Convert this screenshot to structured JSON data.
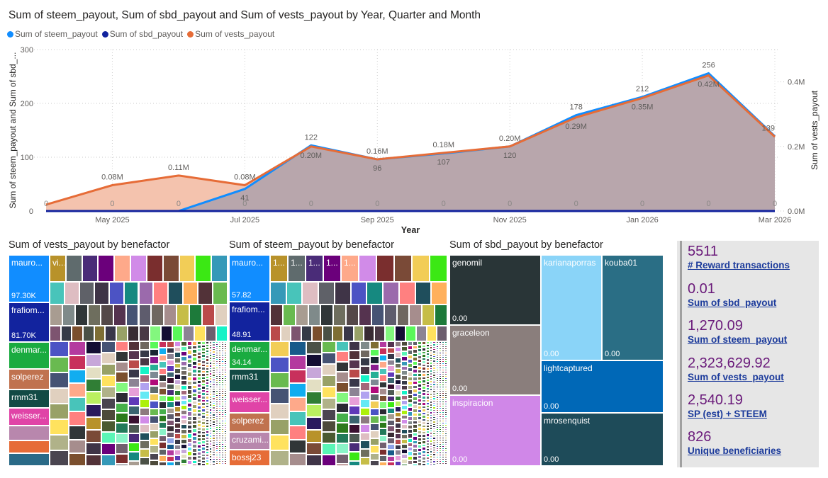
{
  "chart_data": {
    "type": "line",
    "title": "Sum of steem_payout, Sum of sbd_payout and Sum of vests_payout by Year, Quarter and Month",
    "xlabel": "Year",
    "ylabel_left": "Sum of steem_payout and Sum of sbd_...",
    "ylabel_right": "Sum of vests_payout",
    "categories": [
      "Apr 2025",
      "May 2025",
      "Jun 2025",
      "Jul 2025",
      "Aug 2025",
      "Sep 2025",
      "Oct 2025",
      "Nov 2025",
      "Dec 2025",
      "Jan 2026",
      "Feb 2026",
      "Mar 2026"
    ],
    "xticks": [
      "May 2025",
      "Jul 2025",
      "Sep 2025",
      "Nov 2025",
      "Jan 2026",
      "Mar 2026"
    ],
    "ylim_left": [
      0,
      300
    ],
    "yticks_left": [
      {
        "v": 0,
        "label": "0"
      },
      {
        "v": 100,
        "label": "100"
      },
      {
        "v": 200,
        "label": "200"
      },
      {
        "v": 300,
        "label": "300"
      }
    ],
    "ylim_right": [
      0,
      0.5
    ],
    "yticks_right": [
      {
        "v": 0,
        "label": "0.0M"
      },
      {
        "v": 0.2,
        "label": "0.2M"
      },
      {
        "v": 0.4,
        "label": "0.4M"
      }
    ],
    "grid": true,
    "legend_position": "top-left",
    "series": [
      {
        "name": "Sum of steem_payout",
        "axis": "left",
        "color": "#118DFF",
        "values": [
          null,
          null,
          0,
          41,
          122,
          96,
          107,
          120,
          178,
          212,
          256,
          139
        ],
        "labels": [
          null,
          null,
          null,
          "41",
          "122",
          "96",
          "107",
          "120",
          "178",
          "212",
          "256",
          "139"
        ]
      },
      {
        "name": "Sum of sbd_payout",
        "axis": "left",
        "color": "#12239E",
        "values": [
          0,
          0,
          0,
          0,
          0,
          0,
          0,
          0,
          0,
          0,
          0,
          0
        ],
        "labels": [
          "0",
          "0",
          "0",
          "0",
          "0",
          "0",
          "0",
          "0",
          "0",
          "0",
          "0",
          "0"
        ]
      },
      {
        "name": "Sum of vests_payout",
        "axis": "right",
        "unit": "M",
        "color": "#E66C37",
        "values": [
          0.02,
          0.08,
          0.11,
          0.08,
          0.2,
          0.16,
          0.18,
          0.2,
          0.29,
          0.35,
          0.42,
          0.23
        ],
        "labels": [
          null,
          "0.08M",
          "0.11M",
          "0.08M",
          "0.20M",
          "0.16M",
          "0.18M",
          "0.20M",
          "0.29M",
          "0.35M",
          "0.42M",
          null
        ]
      }
    ]
  },
  "treemaps": [
    {
      "title": "Sum of vests_payout by benefactor",
      "named": [
        {
          "label": "mauro...",
          "value": "97.30K",
          "color": "#118DFF",
          "weight": 97.3
        },
        {
          "label": "frafiom...",
          "value": "81.70K",
          "color": "#12239E",
          "weight": 81.7
        },
        {
          "label": "denmar...",
          "value": "",
          "color": "#1AAB40",
          "weight": 55
        },
        {
          "label": "solperez",
          "value": "",
          "color": "#C0724F",
          "weight": 42
        },
        {
          "label": "rmm31",
          "value": "",
          "color": "#124A45",
          "weight": 38
        },
        {
          "label": "weisser...",
          "value": "",
          "color": "#E044A7",
          "weight": 36
        },
        {
          "label": "",
          "value": "",
          "color": "#B887AD",
          "weight": 30
        },
        {
          "label": "",
          "value": "",
          "color": "#E66C37",
          "weight": 26
        },
        {
          "label": "",
          "value": "",
          "color": "#2A6A87",
          "weight": 26
        }
      ],
      "first_tile_label": "vi..."
    },
    {
      "title": "Sum of steem_payout by benefactor",
      "named": [
        {
          "label": "mauro...",
          "value": "57.82",
          "color": "#118DFF",
          "weight": 57.82
        },
        {
          "label": "frafiom...",
          "value": "48.91",
          "color": "#12239E",
          "weight": 48.91
        },
        {
          "label": "denmar...",
          "value": "34.14",
          "color": "#1AAB40",
          "weight": 34.14
        },
        {
          "label": "rmm31",
          "value": "",
          "color": "#124A45",
          "weight": 28
        },
        {
          "label": "weisser...",
          "value": "",
          "color": "#E044A7",
          "weight": 26
        },
        {
          "label": "solperez",
          "value": "",
          "color": "#C0724F",
          "weight": 24
        },
        {
          "label": "cruzami...",
          "value": "",
          "color": "#B887AD",
          "weight": 22
        },
        {
          "label": "bossj23",
          "value": "",
          "color": "#E66C37",
          "weight": 20
        }
      ],
      "first_tile_label": "1..."
    },
    {
      "title": "Sum of sbd_payout by benefactor",
      "tiles": [
        {
          "label": "genomil",
          "value": "0.00",
          "color": "#293537"
        },
        {
          "label": "graceleon",
          "value": "0.00",
          "color": "#8A7E7C"
        },
        {
          "label": "inspiracion",
          "value": "0.00",
          "color": "#D087E8"
        },
        {
          "label": "karianaporras",
          "value": "0.00",
          "color": "#8AD4F8"
        },
        {
          "label": "kouba01",
          "value": "0.00",
          "color": "#2A6E85"
        },
        {
          "label": "lightcaptured",
          "value": "0.00",
          "color": "#0068B7"
        },
        {
          "label": "mrosenquist",
          "value": "0.00",
          "color": "#1E4B59"
        }
      ]
    }
  ],
  "palette": [
    "#B8922A",
    "#5F6B6D",
    "#4A2C78",
    "#6B007B",
    "#FEA98A",
    "#D18BE8",
    "#7A2E2E",
    "#7A4A37",
    "#F2CD57",
    "#3BE814",
    "#3599B8",
    "#48C4BA",
    "#DEBDC2",
    "#5F6168",
    "#3F3447",
    "#4C53C4",
    "#168980",
    "#9B6AAC",
    "#FF8080",
    "#1F4E5C",
    "#FFB05C",
    "#523238",
    "#69BA50",
    "#A89C91",
    "#7F8A8A",
    "#303638",
    "#6E6E5E",
    "#544848",
    "#55334F",
    "#465374",
    "#5E5C6D",
    "#6F6760",
    "#A68D8D",
    "#C6BD47",
    "#1D7A3A",
    "#BA4A4A",
    "#E0D0BF",
    "#7D5470",
    "#363A47",
    "#7B4F2E",
    "#4B5146",
    "#7E6E34",
    "#393749",
    "#98A167",
    "#382B33",
    "#4A3845",
    "#83F77E",
    "#140E33",
    "#5AF85A",
    "#8C8394",
    "#FFE25E",
    "#6C5E6E",
    "#16F2C7",
    "#2B2A33",
    "#C7A6D9",
    "#1A2833",
    "#E79FD8",
    "#B0B289",
    "#8FA3E7",
    "#A3677A",
    "#46B04A",
    "#E3DFC3",
    "#8A1B8E",
    "#5F39B8",
    "#4A4550",
    "#185A8A",
    "#B1A2F0",
    "#2C7A1B",
    "#307E35",
    "#27B095",
    "#3A6470",
    "#4D4A3A",
    "#B43A9F",
    "#64E9F5",
    "#227A5A",
    "#BAF060",
    "#7E8A94",
    "#3A1030",
    "#4A5A31",
    "#C8305C",
    "#ADF00C",
    "#8AF4C8",
    "#2A1B5E",
    "#B00A7A",
    "#4D5A52",
    "#5AF5B6",
    "#11ADF0",
    "#8C7A7F",
    "#725F6E"
  ],
  "kpis": [
    {
      "value": "5511",
      "label": "# Reward transactions"
    },
    {
      "value": "0.01",
      "label": "Sum of sbd_payout"
    },
    {
      "value": "1,270.09",
      "label": "Sum of steem_payout"
    },
    {
      "value": "2,323,629.92",
      "label": "Sum of vests_payout"
    },
    {
      "value": "2,540.19",
      "label": "SP (est) + STEEM"
    },
    {
      "value": "826",
      "label": "Unique beneficiaries"
    }
  ]
}
